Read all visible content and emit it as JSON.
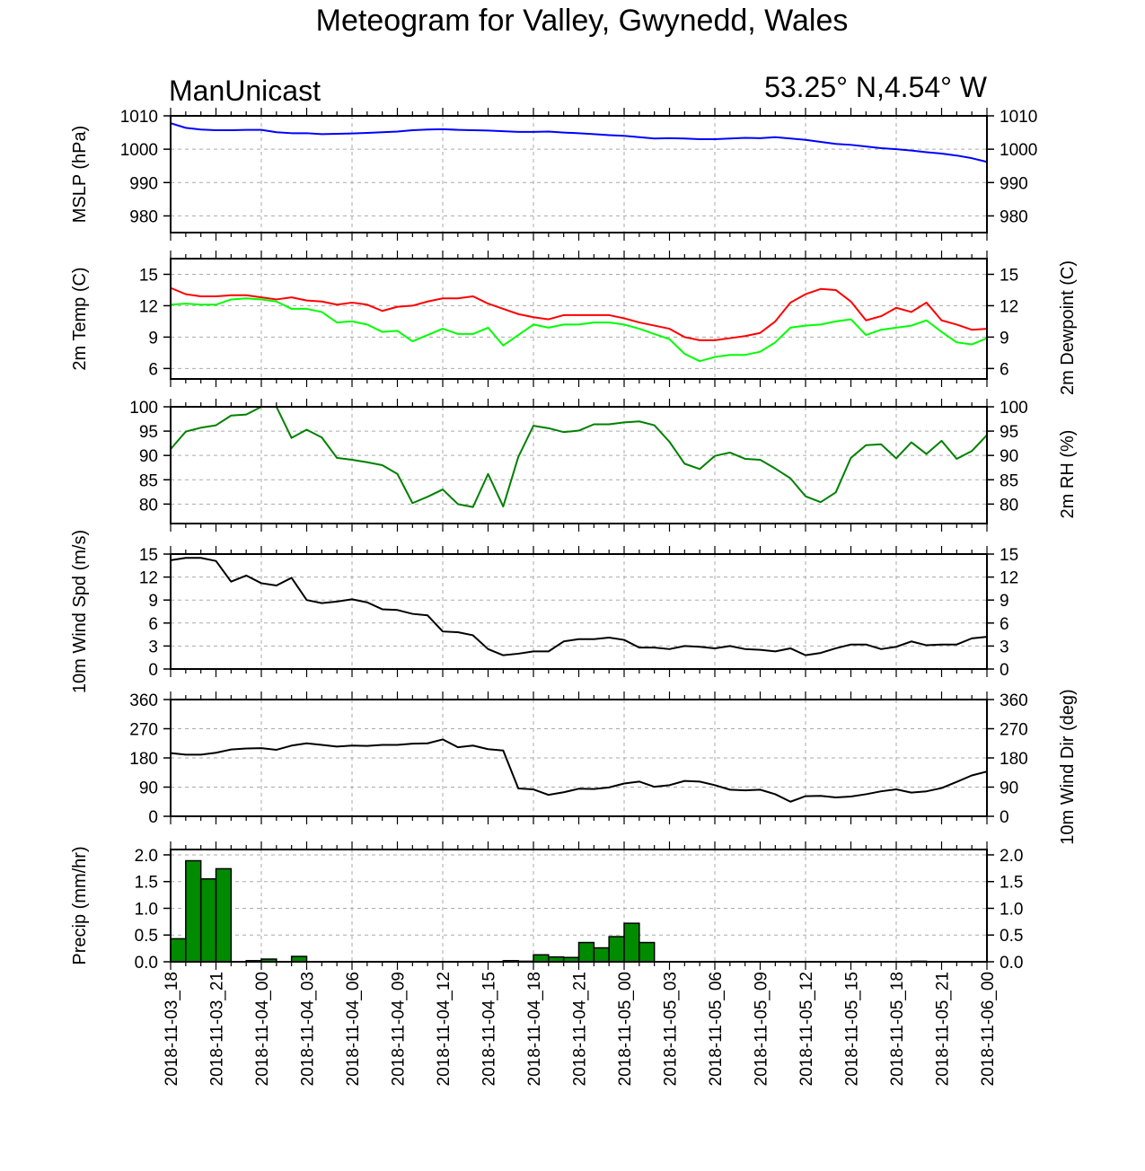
{
  "title": "Meteogram for Valley, Gwynedd, Wales",
  "model": "ManUnicast",
  "location": "53.25° N,4.54° W",
  "x_ticks": [
    "2018-11-03_18",
    "2018-11-03_21",
    "2018-11-04_00",
    "2018-11-04_03",
    "2018-11-04_06",
    "2018-11-04_09",
    "2018-11-04_12",
    "2018-11-04_15",
    "2018-11-04_18",
    "2018-11-04_21",
    "2018-11-05_00",
    "2018-11-05_03",
    "2018-11-05_06",
    "2018-11-05_09",
    "2018-11-05_12",
    "2018-11-05_15",
    "2018-11-05_18",
    "2018-11-05_21",
    "2018-11-06_00"
  ],
  "chart_data": [
    {
      "type": "line",
      "ylabel": "MSLP (hPa)",
      "ylabel_right": "",
      "ylim": [
        975,
        1010
      ],
      "yticks": [
        980,
        990,
        1000,
        1010
      ],
      "xlim": [
        0,
        54
      ],
      "grid": true,
      "series": [
        {
          "color": "#0000ff",
          "x": [
            0,
            1,
            2,
            3,
            4,
            5,
            6,
            7,
            8,
            9,
            10,
            11,
            12,
            13,
            14,
            15,
            16,
            17,
            18,
            19,
            20,
            21,
            22,
            23,
            24,
            25,
            26,
            27,
            28,
            29,
            30,
            31,
            32,
            33,
            34,
            35,
            36,
            37,
            38,
            39,
            40,
            41,
            42,
            43,
            44,
            45,
            46,
            47,
            48,
            49,
            50,
            51,
            52,
            53,
            54
          ],
          "values": [
            1007.8,
            1006.4,
            1005.9,
            1005.7,
            1005.7,
            1005.8,
            1005.8,
            1005.1,
            1004.8,
            1004.8,
            1004.5,
            1004.6,
            1004.7,
            1004.9,
            1005.1,
            1005.3,
            1005.7,
            1005.9,
            1006.0,
            1005.8,
            1005.7,
            1005.6,
            1005.4,
            1005.2,
            1005.2,
            1005.3,
            1005.0,
            1004.8,
            1004.5,
            1004.2,
            1004.0,
            1003.6,
            1003.2,
            1003.3,
            1003.2,
            1003.0,
            1003.0,
            1003.2,
            1003.4,
            1003.3,
            1003.6,
            1003.2,
            1002.8,
            1002.2,
            1001.6,
            1001.3,
            1000.8,
            1000.3,
            1000.0,
            999.6,
            999.1,
            998.7,
            998.1,
            997.3,
            996.2
          ]
        }
      ]
    },
    {
      "type": "line",
      "ylabel": "2m Temp (C)",
      "ylabel_right": "2m Dewpoint (C)",
      "ylim": [
        5,
        16.5
      ],
      "yticks": [
        6,
        9,
        12,
        15
      ],
      "xlim": [
        0,
        54
      ],
      "grid": true,
      "series": [
        {
          "color": "#ff0000",
          "x": [
            0,
            1,
            2,
            3,
            4,
            5,
            6,
            7,
            8,
            9,
            10,
            11,
            12,
            13,
            14,
            15,
            16,
            17,
            18,
            19,
            20,
            21,
            22,
            23,
            24,
            25,
            26,
            27,
            28,
            29,
            30,
            31,
            32,
            33,
            34,
            35,
            36,
            37,
            38,
            39,
            40,
            41,
            42,
            43,
            44,
            45,
            46,
            47,
            48,
            49,
            50,
            51,
            52,
            53,
            54
          ],
          "values": [
            13.7,
            13.1,
            12.9,
            12.9,
            13.0,
            13.0,
            12.8,
            12.6,
            12.8,
            12.5,
            12.4,
            12.1,
            12.3,
            12.1,
            11.5,
            11.9,
            12.0,
            12.4,
            12.7,
            12.7,
            12.9,
            12.2,
            11.7,
            11.2,
            10.9,
            10.7,
            11.1,
            11.1,
            11.1,
            11.1,
            10.8,
            10.4,
            10.1,
            9.8,
            9.0,
            8.7,
            8.7,
            8.9,
            9.1,
            9.4,
            10.5,
            12.3,
            13.1,
            13.6,
            13.5,
            12.4,
            10.6,
            11.0,
            11.8,
            11.4,
            12.3,
            10.6,
            10.2,
            9.7,
            9.8
          ]
        },
        {
          "color": "#00ff00",
          "x": [
            0,
            1,
            2,
            3,
            4,
            5,
            6,
            7,
            8,
            9,
            10,
            11,
            12,
            13,
            14,
            15,
            16,
            17,
            18,
            19,
            20,
            21,
            22,
            23,
            24,
            25,
            26,
            27,
            28,
            29,
            30,
            31,
            32,
            33,
            34,
            35,
            36,
            37,
            38,
            39,
            40,
            41,
            42,
            43,
            44,
            45,
            46,
            47,
            48,
            49,
            50,
            51,
            52,
            53,
            54
          ],
          "values": [
            12.1,
            12.2,
            12.1,
            12.1,
            12.6,
            12.7,
            12.6,
            12.4,
            11.7,
            11.7,
            11.4,
            10.4,
            10.5,
            10.2,
            9.5,
            9.6,
            8.6,
            9.2,
            9.8,
            9.3,
            9.3,
            9.9,
            8.2,
            9.2,
            10.2,
            9.9,
            10.2,
            10.2,
            10.4,
            10.4,
            10.2,
            9.8,
            9.3,
            8.8,
            7.4,
            6.7,
            7.1,
            7.3,
            7.3,
            7.6,
            8.5,
            9.9,
            10.1,
            10.2,
            10.5,
            10.7,
            9.2,
            9.7,
            9.9,
            10.1,
            10.6,
            9.5,
            8.5,
            8.3,
            8.9
          ]
        }
      ]
    },
    {
      "type": "line",
      "ylabel": "",
      "ylabel_right": "2m RH (%)",
      "ylim": [
        76,
        100
      ],
      "yticks": [
        80,
        85,
        90,
        95,
        100
      ],
      "xlim": [
        0,
        54
      ],
      "grid": true,
      "series": [
        {
          "color": "#008000",
          "x": [
            0,
            1,
            2,
            3,
            4,
            5,
            6,
            7,
            8,
            9,
            10,
            11,
            12,
            13,
            14,
            15,
            16,
            17,
            18,
            19,
            20,
            21,
            22,
            23,
            24,
            25,
            26,
            27,
            28,
            29,
            30,
            31,
            32,
            33,
            34,
            35,
            36,
            37,
            38,
            39,
            40,
            41,
            42,
            43,
            44,
            45,
            46,
            47,
            48,
            49,
            50,
            51,
            52,
            53,
            54
          ],
          "values": [
            91.3,
            94.9,
            95.7,
            96.2,
            98.2,
            98.4,
            100.0,
            100.0,
            93.6,
            95.3,
            93.7,
            89.5,
            89.1,
            88.6,
            88.0,
            86.2,
            80.2,
            81.5,
            83.0,
            80.0,
            79.4,
            86.2,
            79.5,
            89.7,
            96.1,
            95.6,
            94.8,
            95.1,
            96.4,
            96.4,
            96.8,
            97.0,
            96.2,
            92.8,
            88.3,
            87.2,
            89.9,
            90.6,
            89.3,
            89.1,
            87.3,
            85.3,
            81.6,
            80.4,
            82.4,
            89.5,
            92.1,
            92.3,
            89.4,
            92.7,
            90.3,
            93.0,
            89.3,
            90.9,
            94.2
          ]
        }
      ]
    },
    {
      "type": "line",
      "ylabel": "10m Wind Spd (m/s)",
      "ylabel_right": "",
      "ylim": [
        0,
        15
      ],
      "yticks": [
        0,
        3,
        6,
        9,
        12,
        15
      ],
      "xlim": [
        0,
        54
      ],
      "grid": true,
      "series": [
        {
          "color": "#000000",
          "x": [
            0,
            1,
            2,
            3,
            4,
            5,
            6,
            7,
            8,
            9,
            10,
            11,
            12,
            13,
            14,
            15,
            16,
            17,
            18,
            19,
            20,
            21,
            22,
            23,
            24,
            25,
            26,
            27,
            28,
            29,
            30,
            31,
            32,
            33,
            34,
            35,
            36,
            37,
            38,
            39,
            40,
            41,
            42,
            43,
            44,
            45,
            46,
            47,
            48,
            49,
            50,
            51,
            52,
            53,
            54
          ],
          "values": [
            14.2,
            14.5,
            14.5,
            14.1,
            11.4,
            12.2,
            11.2,
            10.9,
            11.9,
            9.0,
            8.6,
            8.8,
            9.1,
            8.7,
            7.8,
            7.7,
            7.2,
            7.0,
            4.9,
            4.8,
            4.4,
            2.6,
            1.8,
            2.0,
            2.3,
            2.3,
            3.6,
            3.9,
            3.9,
            4.1,
            3.8,
            2.8,
            2.8,
            2.6,
            3.0,
            2.9,
            2.7,
            3.0,
            2.6,
            2.5,
            2.3,
            2.7,
            1.8,
            2.1,
            2.7,
            3.2,
            3.2,
            2.6,
            2.9,
            3.6,
            3.1,
            3.2,
            3.2,
            4.0,
            4.2
          ]
        }
      ]
    },
    {
      "type": "line",
      "ylabel": "",
      "ylabel_right": "10m Wind Dir (deg)",
      "ylim": [
        0,
        360
      ],
      "yticks": [
        0,
        90,
        180,
        270,
        360
      ],
      "xlim": [
        0,
        54
      ],
      "grid": true,
      "series": [
        {
          "color": "#000000",
          "x": [
            0,
            1,
            2,
            3,
            4,
            5,
            6,
            7,
            8,
            9,
            10,
            11,
            12,
            13,
            14,
            15,
            16,
            17,
            18,
            19,
            20,
            21,
            22,
            23,
            24,
            25,
            26,
            27,
            28,
            29,
            30,
            31,
            32,
            33,
            34,
            35,
            36,
            37,
            38,
            39,
            40,
            41,
            42,
            43,
            44,
            45,
            46,
            47,
            48,
            49,
            50,
            51,
            52,
            53,
            54
          ],
          "values": [
            195,
            190,
            190,
            196,
            206,
            209,
            210,
            205,
            218,
            225,
            220,
            215,
            218,
            217,
            220,
            220,
            224,
            225,
            237,
            213,
            218,
            207,
            203,
            86,
            83,
            66,
            74,
            85,
            84,
            89,
            101,
            107,
            91,
            96,
            109,
            107,
            96,
            82,
            80,
            82,
            68,
            45,
            62,
            63,
            58,
            61,
            68,
            77,
            83,
            73,
            77,
            87,
            106,
            126,
            138
          ]
        }
      ]
    },
    {
      "type": "bar",
      "ylabel": "Precip (mm/hr)",
      "ylabel_right": "",
      "ylim": [
        0,
        2.1
      ],
      "yticks": [
        "0.0",
        "0.5",
        "1.0",
        "1.5",
        "2.0"
      ],
      "xlim": [
        0,
        54
      ],
      "grid": true,
      "bar_color": "#008b00",
      "values": [
        0.43,
        1.89,
        1.55,
        1.74,
        0,
        0.02,
        0.05,
        0,
        0.1,
        0,
        0,
        0,
        0,
        0,
        0,
        0,
        0,
        0,
        0,
        0,
        0,
        0,
        0.02,
        0.01,
        0.13,
        0.09,
        0.08,
        0.36,
        0.26,
        0.47,
        0.72,
        0.36,
        0,
        0,
        0,
        0,
        0,
        0,
        0,
        0,
        0,
        0,
        0,
        0,
        0,
        0,
        0,
        0,
        0,
        0.01,
        0,
        0,
        0,
        0
      ]
    }
  ]
}
